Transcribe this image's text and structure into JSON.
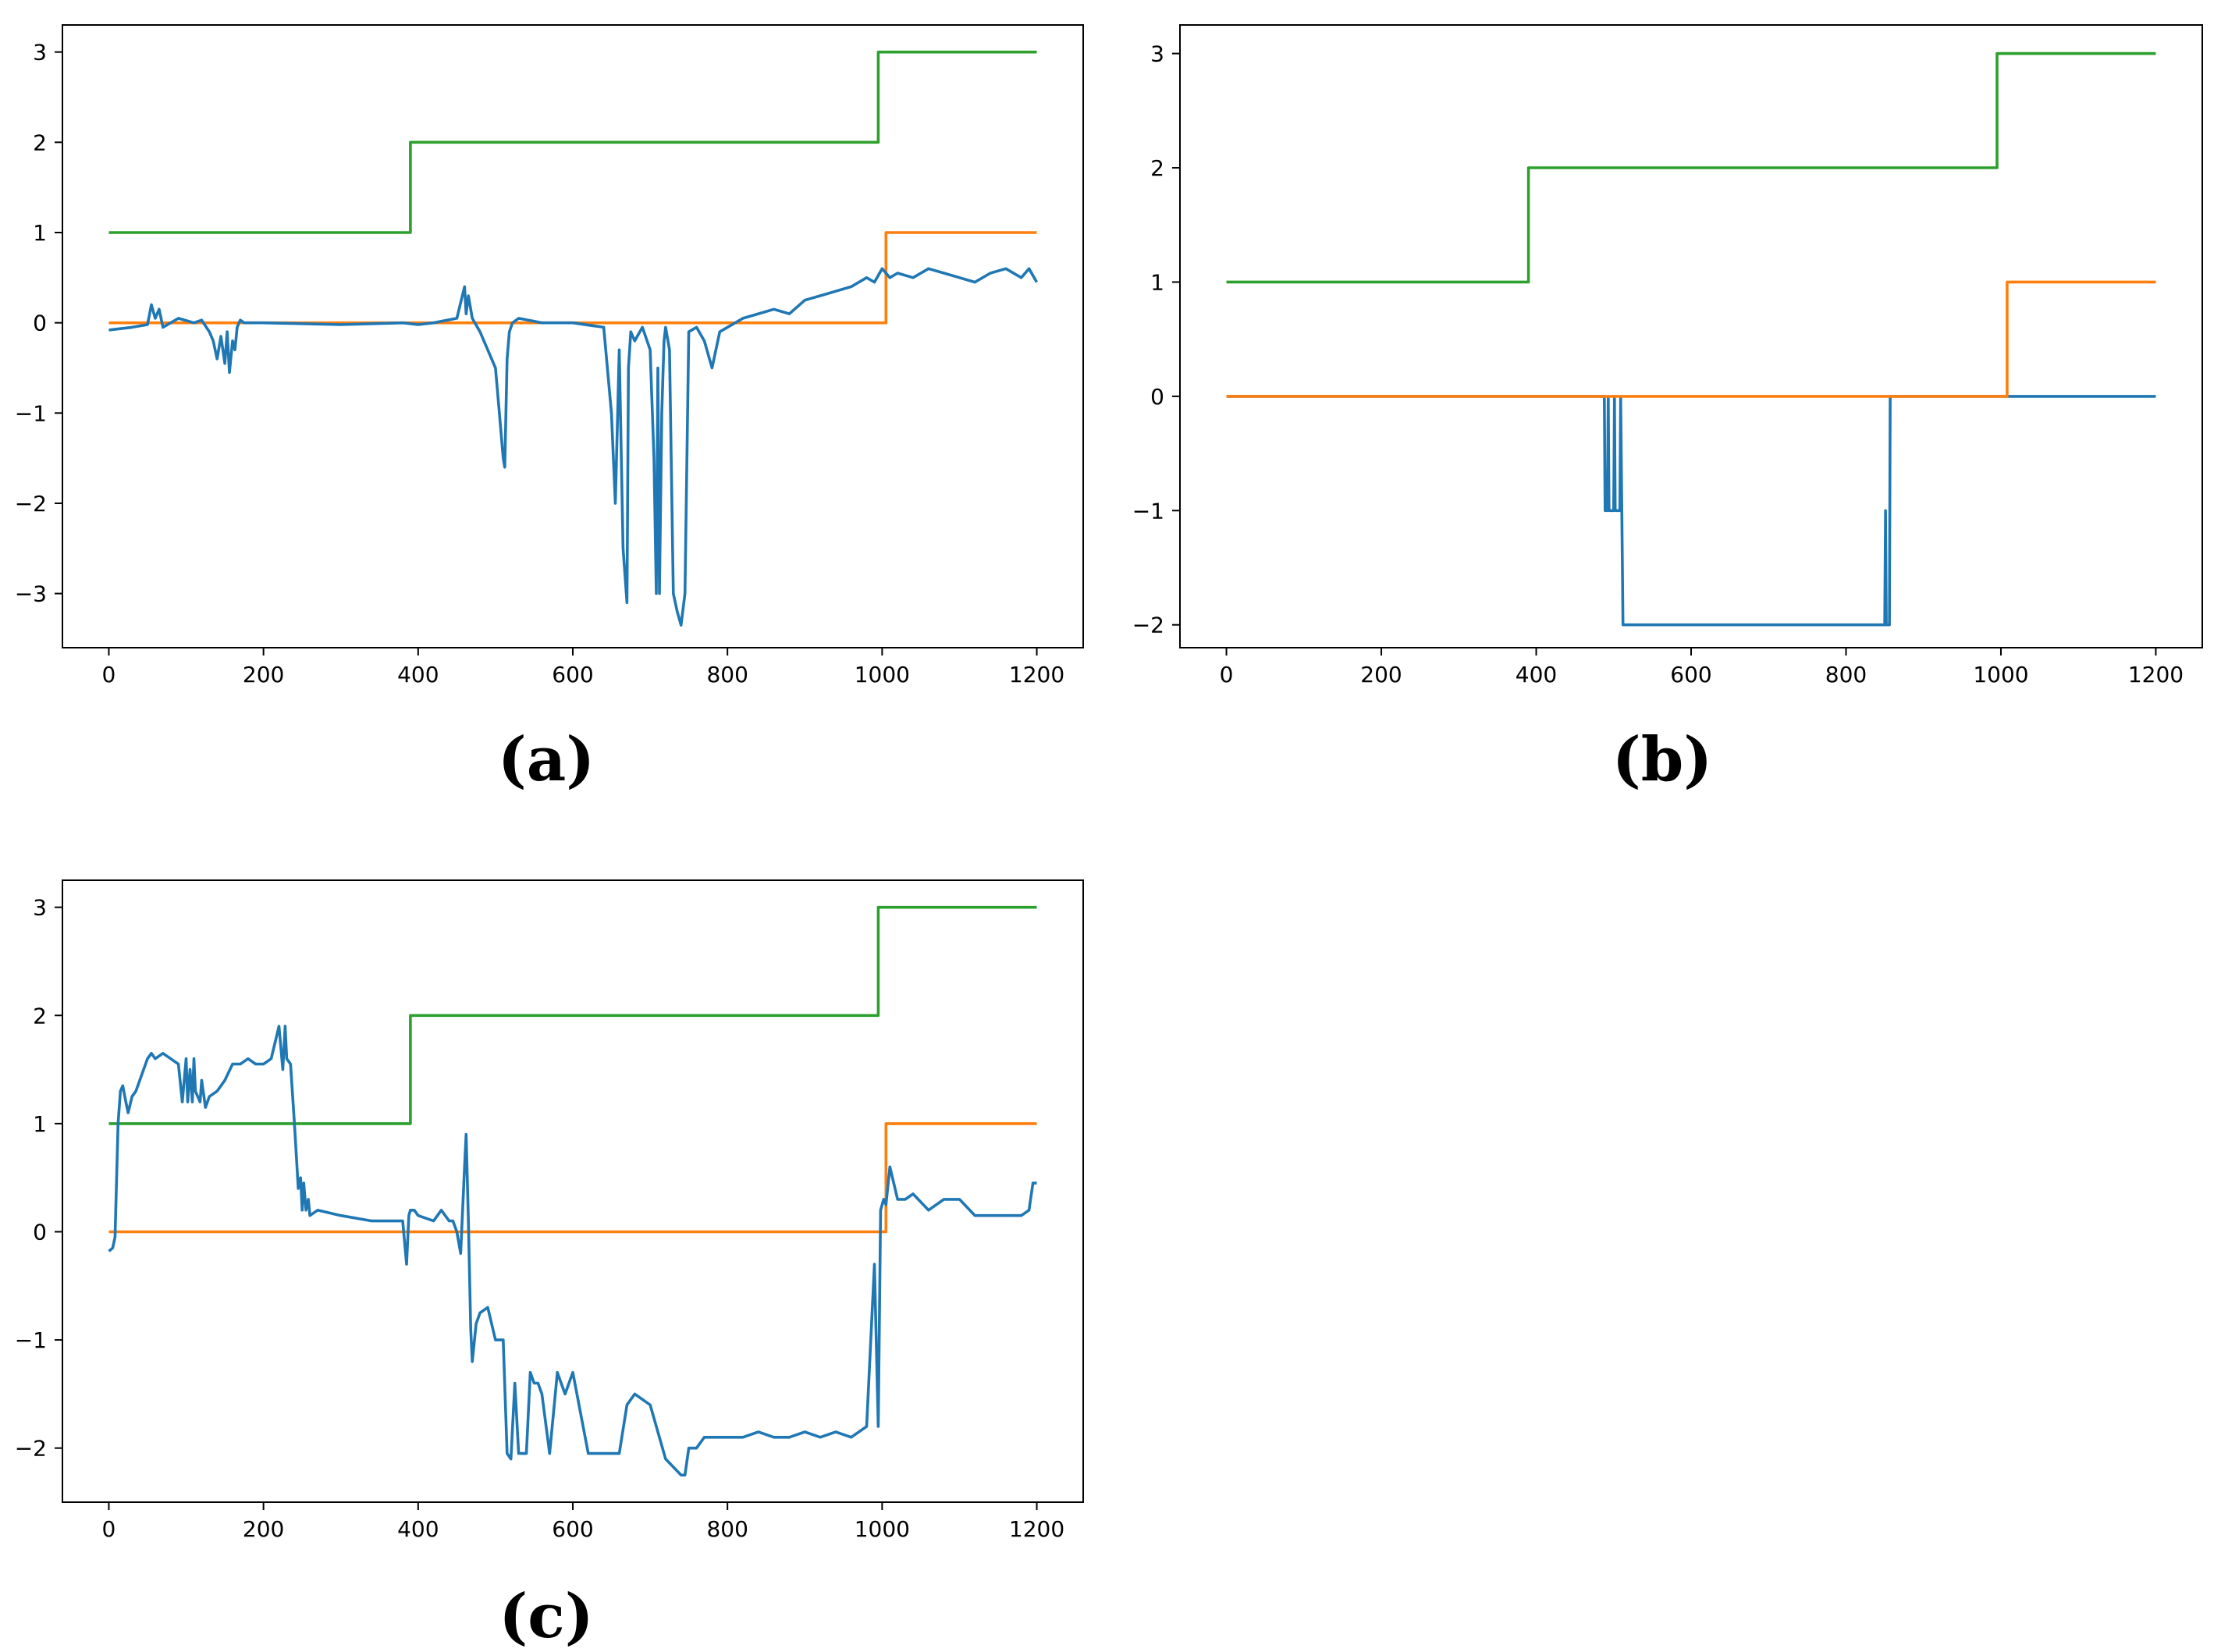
{
  "figure": {
    "panels": [
      "(a)",
      "(b)",
      "(c)"
    ]
  },
  "colors": {
    "blue": "#1f77b4",
    "orange": "#ff7f0e",
    "green": "#2ca02c",
    "axis": "#000000"
  },
  "chart_data": [
    {
      "type": "line",
      "panel_label": "(a)",
      "xlim": [
        -60,
        1260
      ],
      "ylim": [
        -3.6,
        3.3
      ],
      "xticks": [
        0,
        200,
        400,
        600,
        800,
        1000,
        1200
      ],
      "yticks": [
        -3,
        -2,
        -1,
        0,
        1,
        2,
        3
      ],
      "xtick_labels": [
        "0",
        "200",
        "400",
        "600",
        "800",
        "1000",
        "1200"
      ],
      "ytick_labels": [
        "−3",
        "−2",
        "−1",
        "0",
        "1",
        "2",
        "3"
      ],
      "series": [
        {
          "name": "green",
          "color": "#2ca02c",
          "x": [
            0,
            390,
            390,
            995,
            995,
            1200
          ],
          "y": [
            1,
            1,
            2,
            2,
            3,
            3
          ]
        },
        {
          "name": "orange",
          "color": "#ff7f0e",
          "x": [
            0,
            1005,
            1005,
            1200
          ],
          "y": [
            0,
            0,
            1,
            1
          ]
        },
        {
          "name": "blue",
          "color": "#1f77b4",
          "x": [
            0,
            30,
            50,
            55,
            60,
            65,
            70,
            90,
            110,
            120,
            130,
            135,
            140,
            145,
            150,
            153,
            156,
            160,
            163,
            166,
            170,
            175,
            200,
            300,
            380,
            400,
            420,
            450,
            460,
            462,
            465,
            470,
            480,
            490,
            500,
            505,
            510,
            512,
            515,
            518,
            522,
            530,
            560,
            600,
            640,
            650,
            655,
            658,
            660,
            665,
            670,
            672,
            675,
            680,
            690,
            700,
            705,
            708,
            710,
            712,
            715,
            718,
            720,
            725,
            730,
            735,
            740,
            745,
            750,
            760,
            770,
            780,
            790,
            800,
            820,
            840,
            860,
            880,
            900,
            920,
            940,
            960,
            980,
            990,
            1000,
            1010,
            1020,
            1040,
            1060,
            1080,
            1100,
            1120,
            1140,
            1160,
            1180,
            1190,
            1200
          ],
          "y": [
            -0.08,
            -0.05,
            -0.02,
            0.2,
            0.05,
            0.15,
            -0.05,
            0.05,
            0.0,
            0.03,
            -0.1,
            -0.2,
            -0.4,
            -0.15,
            -0.45,
            -0.1,
            -0.55,
            -0.2,
            -0.3,
            -0.05,
            0.03,
            0.0,
            0.0,
            -0.02,
            0.0,
            -0.02,
            0.0,
            0.05,
            0.4,
            0.1,
            0.3,
            0.05,
            -0.1,
            -0.3,
            -0.5,
            -1.0,
            -1.5,
            -1.6,
            -0.4,
            -0.1,
            0.0,
            0.05,
            0.0,
            0.0,
            -0.05,
            -1.0,
            -2.0,
            -1.0,
            -0.3,
            -2.5,
            -3.1,
            -0.5,
            -0.1,
            -0.2,
            -0.05,
            -0.3,
            -1.5,
            -3.0,
            -0.5,
            -3.0,
            -1.0,
            -0.2,
            -0.05,
            -0.3,
            -3.0,
            -3.2,
            -3.35,
            -3.0,
            -0.1,
            -0.05,
            -0.2,
            -0.5,
            -0.1,
            -0.05,
            0.05,
            0.1,
            0.15,
            0.1,
            0.25,
            0.3,
            0.35,
            0.4,
            0.5,
            0.45,
            0.6,
            0.5,
            0.55,
            0.5,
            0.6,
            0.55,
            0.5,
            0.45,
            0.55,
            0.6,
            0.5,
            0.6,
            0.45
          ]
        }
      ]
    },
    {
      "type": "line",
      "panel_label": "(b)",
      "xlim": [
        -60,
        1260
      ],
      "ylim": [
        -2.2,
        3.25
      ],
      "xticks": [
        0,
        200,
        400,
        600,
        800,
        1000,
        1200
      ],
      "yticks": [
        -2,
        -1,
        0,
        1,
        2,
        3
      ],
      "xtick_labels": [
        "0",
        "200",
        "400",
        "600",
        "800",
        "1000",
        "1200"
      ],
      "ytick_labels": [
        "−2",
        "−1",
        "0",
        "1",
        "2",
        "3"
      ],
      "series": [
        {
          "name": "green",
          "color": "#2ca02c",
          "x": [
            0,
            390,
            390,
            995,
            995,
            1200
          ],
          "y": [
            1,
            1,
            2,
            2,
            3,
            3
          ]
        },
        {
          "name": "blue",
          "color": "#1f77b4",
          "x": [
            0,
            488,
            489,
            492,
            493,
            494,
            497,
            500,
            501,
            502,
            508,
            509,
            512,
            850,
            851,
            852,
            856,
            857,
            860,
            1200
          ],
          "y": [
            0,
            0,
            -1,
            -1,
            0,
            -1,
            -1,
            -1,
            0,
            -1,
            -1,
            0,
            -2,
            -2,
            -1,
            -2,
            -2,
            0,
            0,
            0
          ]
        },
        {
          "name": "orange",
          "color": "#ff7f0e",
          "x": [
            0,
            1008,
            1008,
            1200
          ],
          "y": [
            0,
            0,
            1,
            1
          ]
        }
      ]
    },
    {
      "type": "line",
      "panel_label": "(c)",
      "xlim": [
        -60,
        1260
      ],
      "ylim": [
        -2.5,
        3.25
      ],
      "xticks": [
        0,
        200,
        400,
        600,
        800,
        1000,
        1200
      ],
      "yticks": [
        -2,
        -1,
        0,
        1,
        2,
        3
      ],
      "xtick_labels": [
        "0",
        "200",
        "400",
        "600",
        "800",
        "1000",
        "1200"
      ],
      "ytick_labels": [
        "−2",
        "−1",
        "0",
        "1",
        "2",
        "3"
      ],
      "series": [
        {
          "name": "green",
          "color": "#2ca02c",
          "x": [
            0,
            390,
            390,
            995,
            995,
            1200
          ],
          "y": [
            1,
            1,
            2,
            2,
            3,
            3
          ]
        },
        {
          "name": "orange",
          "color": "#ff7f0e",
          "x": [
            0,
            1005,
            1005,
            1200
          ],
          "y": [
            0,
            0,
            1,
            1
          ]
        },
        {
          "name": "blue",
          "color": "#1f77b4",
          "x": [
            0,
            5,
            8,
            12,
            15,
            18,
            22,
            25,
            30,
            35,
            40,
            45,
            50,
            55,
            60,
            70,
            80,
            90,
            95,
            100,
            102,
            105,
            108,
            110,
            112,
            118,
            120,
            125,
            130,
            140,
            150,
            160,
            170,
            180,
            190,
            200,
            210,
            220,
            225,
            228,
            230,
            235,
            240,
            245,
            248,
            250,
            252,
            255,
            258,
            260,
            270,
            300,
            340,
            380,
            385,
            388,
            390,
            395,
            400,
            420,
            430,
            440,
            445,
            450,
            455,
            460,
            462,
            465,
            468,
            470,
            475,
            480,
            490,
            500,
            510,
            515,
            520,
            525,
            530,
            540,
            545,
            550,
            555,
            560,
            570,
            580,
            585,
            590,
            600,
            620,
            640,
            660,
            670,
            680,
            700,
            720,
            740,
            745,
            750,
            760,
            770,
            780,
            800,
            820,
            840,
            860,
            880,
            900,
            920,
            940,
            960,
            980,
            990,
            995,
            998,
            1000,
            1002,
            1005,
            1010,
            1020,
            1030,
            1040,
            1060,
            1080,
            1100,
            1120,
            1140,
            1160,
            1180,
            1190,
            1195,
            1200
          ],
          "y": [
            -0.18,
            -0.15,
            -0.05,
            1.0,
            1.3,
            1.35,
            1.2,
            1.1,
            1.25,
            1.3,
            1.4,
            1.5,
            1.6,
            1.65,
            1.6,
            1.65,
            1.6,
            1.55,
            1.2,
            1.6,
            1.2,
            1.5,
            1.2,
            1.6,
            1.3,
            1.2,
            1.4,
            1.15,
            1.25,
            1.3,
            1.4,
            1.55,
            1.55,
            1.6,
            1.55,
            1.55,
            1.6,
            1.9,
            1.5,
            1.9,
            1.6,
            1.55,
            1.0,
            0.4,
            0.5,
            0.2,
            0.45,
            0.2,
            0.3,
            0.15,
            0.2,
            0.15,
            0.1,
            0.1,
            -0.3,
            0.15,
            0.2,
            0.2,
            0.15,
            0.1,
            0.2,
            0.1,
            0.1,
            0.0,
            -0.2,
            0.6,
            0.9,
            0.1,
            -0.9,
            -1.2,
            -0.85,
            -0.75,
            -0.7,
            -1.0,
            -1.0,
            -2.05,
            -2.1,
            -1.4,
            -2.05,
            -2.05,
            -1.3,
            -1.4,
            -1.4,
            -1.5,
            -2.05,
            -1.3,
            -1.4,
            -1.5,
            -1.3,
            -2.05,
            -2.05,
            -2.05,
            -1.6,
            -1.5,
            -1.6,
            -2.1,
            -2.25,
            -2.25,
            -2.0,
            -2.0,
            -1.9,
            -1.9,
            -1.9,
            -1.9,
            -1.85,
            -1.9,
            -1.9,
            -1.85,
            -1.9,
            -1.85,
            -1.9,
            -1.8,
            -0.3,
            -1.8,
            0.2,
            0.25,
            0.3,
            0.25,
            0.6,
            0.3,
            0.3,
            0.35,
            0.2,
            0.3,
            0.3,
            0.15,
            0.15,
            0.15,
            0.15,
            0.2,
            0.45,
            0.45
          ]
        }
      ]
    }
  ]
}
